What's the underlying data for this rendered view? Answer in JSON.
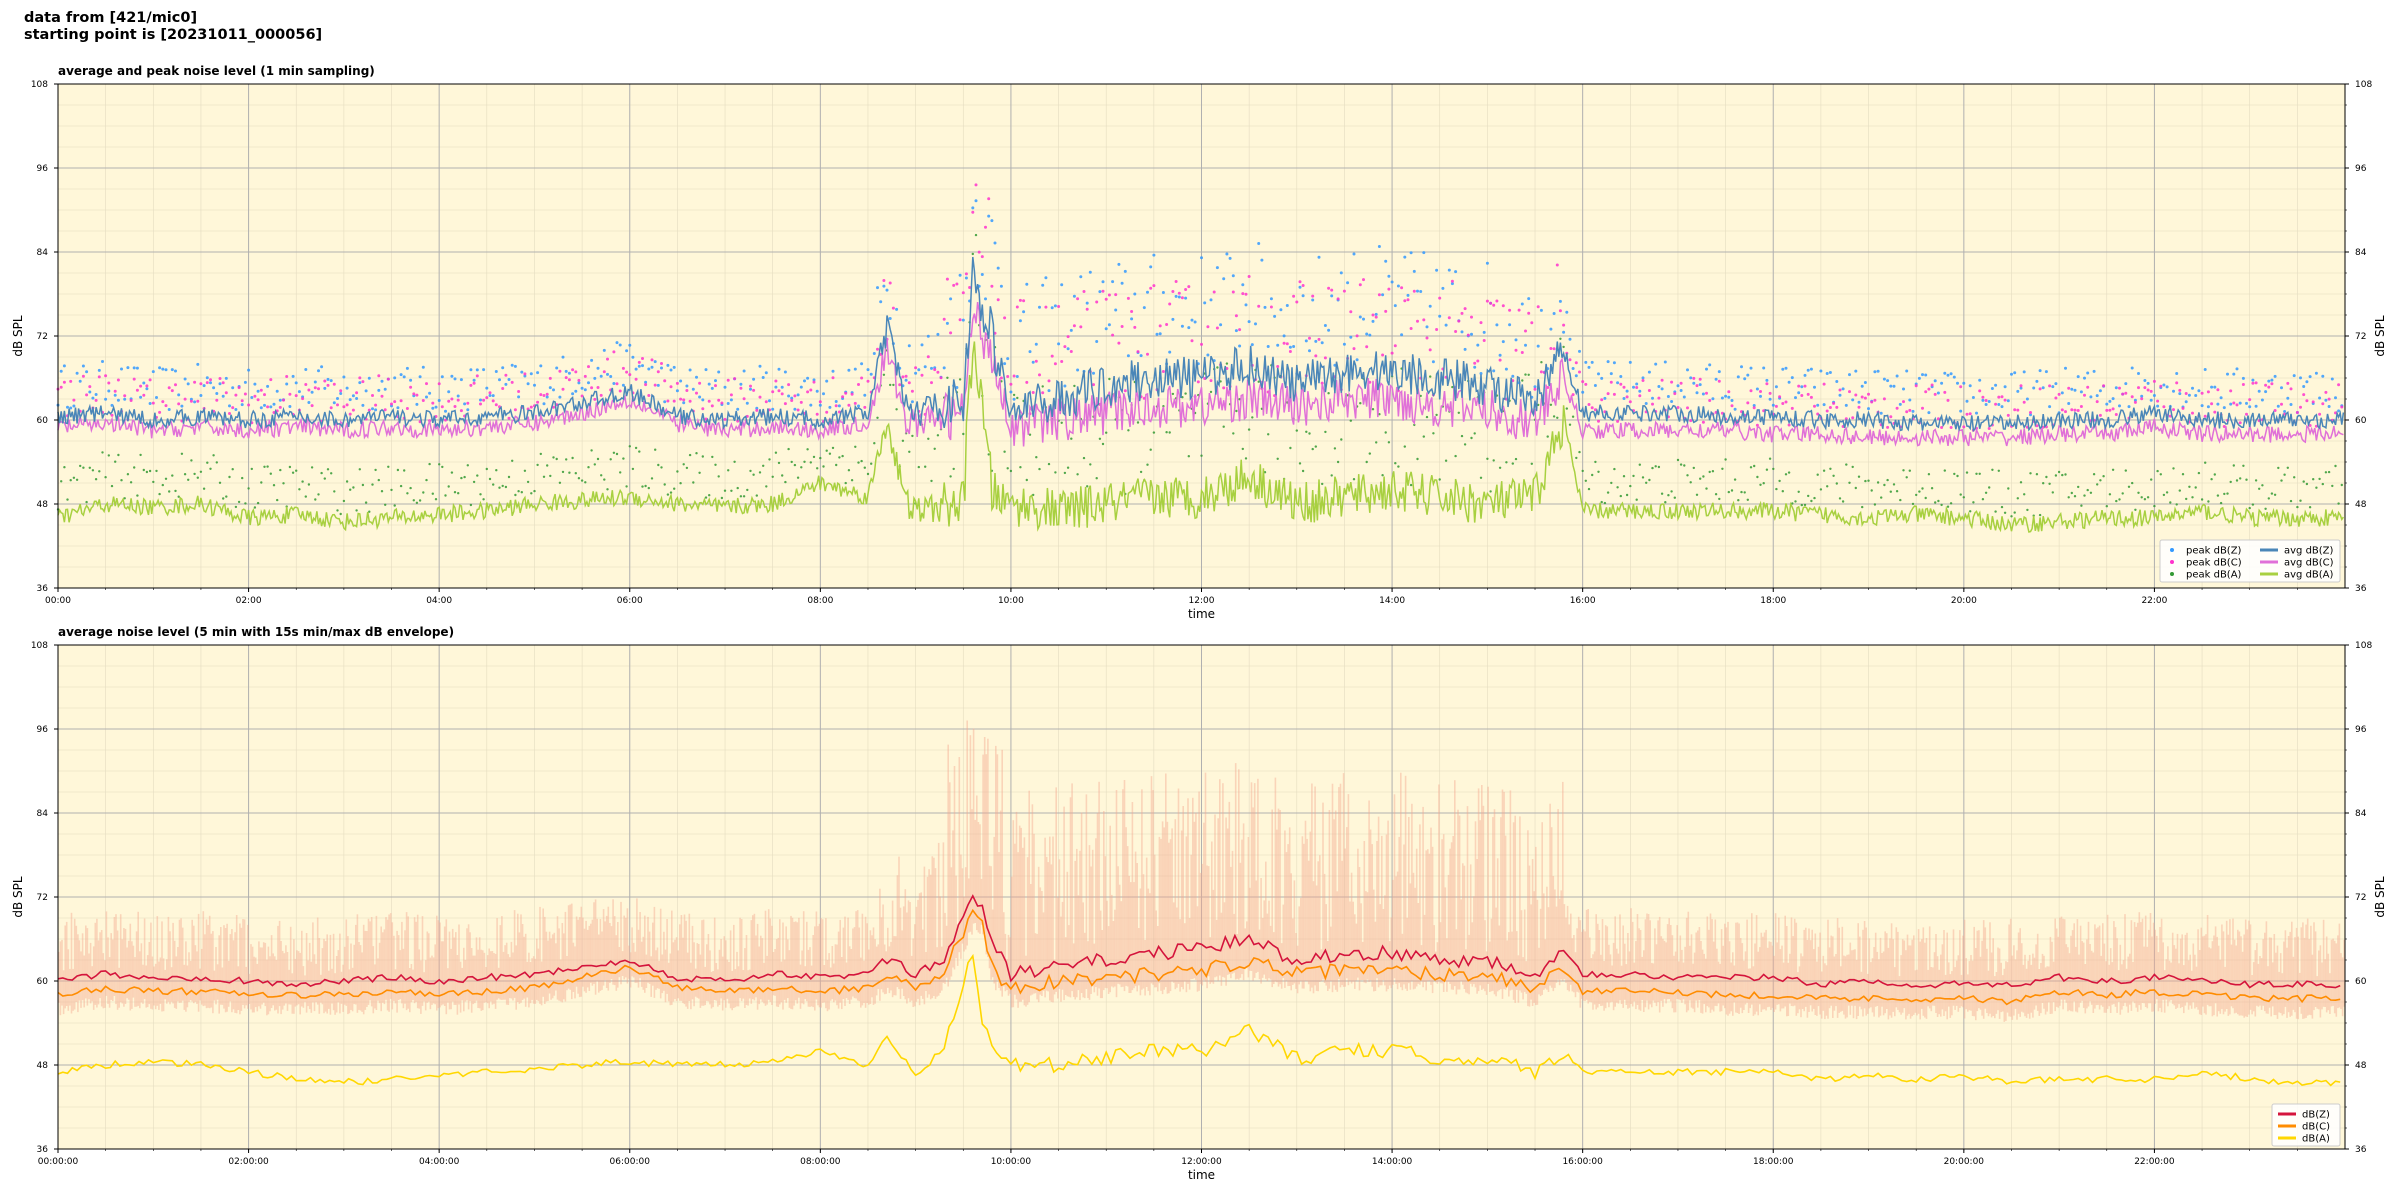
{
  "header": {
    "line1": "data from [421/mic0]",
    "line2": "starting point is [20231011_000056]"
  },
  "colors": {
    "plot_bg": "#fff7d9",
    "peak_z": "#3399ff",
    "peak_c": "#ff33cc",
    "peak_a": "#339933",
    "avg_z": "#4a86b8",
    "avg_c": "#e070d8",
    "avg_a": "#a8d040",
    "dbz": "#d4143c",
    "dbc": "#ff8c00",
    "dba": "#ffd700",
    "envelope": "#f4a890"
  },
  "chart_data": [
    {
      "type": "line",
      "title": "average and peak noise level (1 min sampling)",
      "xlabel": "time",
      "ylabel": "dB SPL",
      "xlim": [
        0,
        24
      ],
      "ylim": [
        36,
        108
      ],
      "x_ticks": [
        "00:00",
        "02:00",
        "04:00",
        "06:00",
        "08:00",
        "10:00",
        "12:00",
        "14:00",
        "16:00",
        "18:00",
        "20:00",
        "22:00"
      ],
      "y_ticks": [
        "36",
        "48",
        "60",
        "72",
        "84",
        "96",
        "108"
      ],
      "grid": true,
      "legend_position": "bottom-right",
      "legend": {
        "peak_z": "peak dB(Z)",
        "peak_c": "peak dB(C)",
        "peak_a": "peak dB(A)",
        "avg_z": "avg dB(Z)",
        "avg_c": "avg dB(C)",
        "avg_a": "avg dB(A)"
      },
      "series": [
        {
          "key": "avg_z",
          "x": [
            0,
            0.5,
            1,
            1.5,
            2,
            2.5,
            3,
            3.5,
            4,
            4.5,
            5,
            5.5,
            6,
            6.5,
            7,
            7.5,
            8,
            8.5,
            8.7,
            8.9,
            9,
            9.5,
            9.6,
            9.8,
            10,
            10.5,
            11,
            11.5,
            12,
            12.5,
            13,
            13.5,
            14,
            14.5,
            15,
            15.5,
            15.8,
            16,
            16.5,
            17,
            17.5,
            18,
            18.5,
            19,
            19.5,
            20,
            20.5,
            21,
            21.5,
            22,
            22.5,
            23,
            23.5,
            24
          ],
          "y": [
            60.5,
            61,
            60,
            60.5,
            60,
            60.5,
            60,
            60.5,
            60,
            60.5,
            61,
            62.5,
            64,
            60.5,
            60,
            60.5,
            60,
            61,
            73,
            62,
            61,
            63,
            80,
            72,
            61,
            63,
            65,
            66,
            66,
            68,
            65,
            67,
            67,
            66,
            65,
            62,
            70,
            61,
            61,
            61,
            60.5,
            60.5,
            60,
            60,
            59.5,
            59.5,
            59.5,
            60,
            60,
            61,
            60,
            60,
            60,
            60
          ]
        },
        {
          "key": "avg_c",
          "x": [
            0,
            0.5,
            1,
            1.5,
            2,
            2.5,
            3,
            3.5,
            4,
            4.5,
            5,
            5.5,
            6,
            6.5,
            7,
            7.5,
            8,
            8.5,
            8.7,
            8.9,
            9,
            9.5,
            9.6,
            9.8,
            10,
            10.5,
            11,
            11.5,
            12,
            12.5,
            13,
            13.5,
            14,
            14.5,
            15,
            15.5,
            15.8,
            16,
            16.5,
            17,
            17.5,
            18,
            18.5,
            19,
            19.5,
            20,
            20.5,
            21,
            21.5,
            22,
            22.5,
            23,
            23.5,
            24
          ],
          "y": [
            59,
            59.5,
            58.5,
            59,
            58.5,
            59,
            58.5,
            59,
            58.5,
            59,
            59.5,
            61,
            63,
            59.5,
            58.5,
            59,
            58.5,
            59.5,
            70,
            60,
            59.5,
            61,
            75,
            70,
            59,
            60,
            61,
            62,
            62,
            63,
            62,
            63,
            63,
            62,
            61.5,
            59.5,
            66,
            58.5,
            58.5,
            58.5,
            58.5,
            58,
            58,
            57.5,
            57.5,
            57.5,
            57.5,
            58,
            58,
            59,
            58,
            58,
            58,
            58
          ]
        },
        {
          "key": "avg_a",
          "x": [
            0,
            0.5,
            1,
            1.5,
            2,
            2.5,
            3,
            3.5,
            4,
            4.5,
            5,
            5.5,
            6,
            6.5,
            7,
            7.5,
            8,
            8.5,
            8.7,
            8.9,
            9,
            9.5,
            9.6,
            9.8,
            10,
            10.5,
            11,
            11.5,
            12,
            12.5,
            13,
            13.5,
            14,
            14.5,
            15,
            15.5,
            15.8,
            16,
            16.5,
            17,
            17.5,
            18,
            18.5,
            19,
            19.5,
            20,
            20.5,
            21,
            21.5,
            22,
            22.5,
            23,
            23.5,
            24
          ],
          "y": [
            46,
            48,
            47.5,
            48,
            46,
            46.5,
            45.5,
            46,
            46.5,
            47,
            48,
            48.5,
            49,
            48,
            47.5,
            48,
            51,
            49,
            60,
            48,
            47,
            48,
            72,
            50,
            48,
            47,
            48,
            49,
            49,
            52,
            48,
            49,
            50,
            49,
            48,
            49,
            60,
            47,
            47,
            47,
            47,
            47,
            46.5,
            46,
            46.5,
            46,
            45,
            45.5,
            46,
            46,
            47,
            46,
            46,
            46
          ]
        }
      ]
    },
    {
      "type": "line",
      "title": "average noise level (5 min with 15s min/max dB envelope)",
      "xlabel": "time",
      "ylabel": "dB SPL",
      "xlim": [
        0,
        24
      ],
      "ylim": [
        36,
        108
      ],
      "x_ticks": [
        "00:00:00",
        "02:00:00",
        "04:00:00",
        "06:00:00",
        "08:00:00",
        "10:00:00",
        "12:00:00",
        "14:00:00",
        "16:00:00",
        "18:00:00",
        "20:00:00",
        "22:00:00"
      ],
      "y_ticks": [
        "36",
        "48",
        "60",
        "72",
        "84",
        "96",
        "108"
      ],
      "grid": true,
      "legend_position": "bottom-right",
      "legend": {
        "dbz": "dB(Z)",
        "dbc": "dB(C)",
        "dba": "dB(A)"
      },
      "series": [
        {
          "key": "dbz",
          "x": [
            0,
            0.5,
            1,
            1.5,
            2,
            2.5,
            3,
            3.5,
            4,
            4.5,
            5,
            5.5,
            6,
            6.5,
            7,
            7.5,
            8,
            8.5,
            8.7,
            9,
            9.3,
            9.6,
            9.7,
            9.8,
            10,
            10.5,
            11,
            11.5,
            12,
            12.5,
            13,
            13.5,
            14,
            14.5,
            15,
            15.5,
            15.8,
            16,
            16.5,
            17,
            17.5,
            18,
            18.5,
            19,
            19.5,
            20,
            20.5,
            21,
            21.5,
            22,
            22.5,
            23,
            23.5,
            24
          ],
          "y": [
            60,
            61,
            60.5,
            60.5,
            60,
            59.5,
            60,
            60.5,
            60,
            60.5,
            61,
            62,
            63,
            60.5,
            60,
            61,
            60.5,
            61,
            63,
            61,
            63,
            72,
            71,
            65,
            61,
            62,
            63,
            64,
            64.5,
            66,
            63,
            64,
            64,
            63,
            63,
            61,
            65,
            61,
            61,
            60.5,
            60.5,
            60.5,
            59.5,
            60,
            59.5,
            59.5,
            59.5,
            60.5,
            60,
            60.5,
            60,
            59.5,
            59.5,
            59.5
          ]
        },
        {
          "key": "dbc",
          "x": [
            0,
            0.5,
            1,
            1.5,
            2,
            2.5,
            3,
            3.5,
            4,
            4.5,
            5,
            5.5,
            6,
            6.5,
            7,
            7.5,
            8,
            8.5,
            8.7,
            9,
            9.3,
            9.6,
            9.7,
            9.8,
            10,
            10.5,
            11,
            11.5,
            12,
            12.5,
            13,
            13.5,
            14,
            14.5,
            15,
            15.5,
            15.8,
            16,
            16.5,
            17,
            17.5,
            18,
            18.5,
            19,
            19.5,
            20,
            20.5,
            21,
            21.5,
            22,
            22.5,
            23,
            23.5,
            24
          ],
          "y": [
            58,
            59,
            58.5,
            58.5,
            58,
            58,
            58,
            58.5,
            58,
            58.5,
            59,
            60.5,
            62,
            59,
            58.5,
            59,
            58.5,
            59,
            61,
            59,
            61,
            70,
            69,
            62,
            59,
            60,
            60.5,
            61,
            61.5,
            63,
            61,
            61.5,
            61.5,
            61,
            61,
            59,
            62,
            58.5,
            58.5,
            58.5,
            58,
            58,
            57.5,
            57.5,
            57.5,
            57.5,
            57,
            58.5,
            58,
            58.5,
            58,
            57.5,
            57.5,
            57.5
          ]
        },
        {
          "key": "dba",
          "x": [
            0,
            0.5,
            1,
            1.5,
            2,
            2.5,
            3,
            3.5,
            4,
            4.5,
            5,
            5.5,
            6,
            6.5,
            7,
            7.5,
            8,
            8.5,
            8.7,
            9,
            9.3,
            9.6,
            9.7,
            9.8,
            10,
            10.5,
            11,
            11.5,
            12,
            12.5,
            13,
            13.5,
            14,
            14.5,
            15,
            15.5,
            15.8,
            16,
            16.5,
            17,
            17.5,
            18,
            18.5,
            19,
            19.5,
            20,
            20.5,
            21,
            21.5,
            22,
            22.5,
            23,
            23.5,
            24
          ],
          "y": [
            47,
            48,
            48.5,
            48,
            47,
            46,
            45.5,
            46,
            46.5,
            47,
            47.5,
            48,
            48.5,
            48,
            48,
            48.5,
            50,
            48,
            52,
            47,
            50,
            64,
            55,
            50,
            48,
            48,
            49,
            50,
            50,
            53,
            49,
            50,
            50,
            49,
            49,
            47,
            50,
            47,
            47,
            47,
            47,
            47,
            46,
            46.5,
            46,
            46.5,
            45.5,
            46,
            46,
            46,
            47,
            46,
            45.5,
            45.5
          ]
        }
      ]
    }
  ]
}
